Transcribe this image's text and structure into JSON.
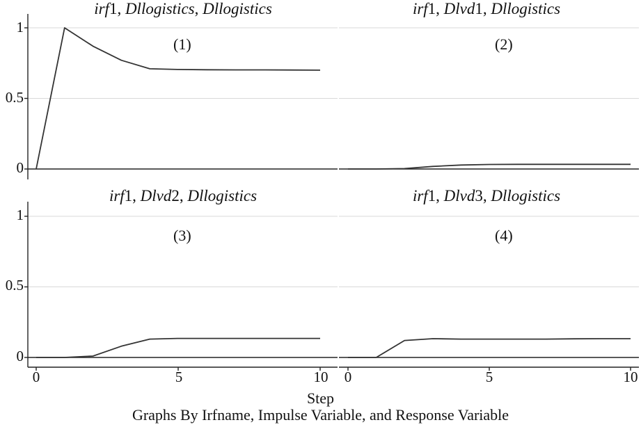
{
  "chart_data": {
    "type": "line",
    "xlabel": "Step",
    "note": "Graphs By Irfname, Impulse Variable, and Response Variable",
    "xlim": [
      0,
      10
    ],
    "ylim": [
      0,
      1
    ],
    "yticks": [
      "0",
      "0.5",
      "1"
    ],
    "xticks": [
      "0",
      "5",
      "10"
    ],
    "grid": true,
    "panels": [
      {
        "title": {
          "irf": "irf",
          "irf_num": "1",
          "sep1": ", ",
          "impulse": "Dllogistics",
          "sep2": ", ",
          "response": "Dllogistics"
        },
        "label": "(1)",
        "x": [
          0,
          1,
          2,
          3,
          4,
          5,
          6,
          7,
          8,
          9,
          10
        ],
        "y": [
          0,
          1.0,
          0.87,
          0.77,
          0.71,
          0.705,
          0.703,
          0.702,
          0.702,
          0.701,
          0.7
        ]
      },
      {
        "title": {
          "irf": "irf",
          "irf_num": "1",
          "sep1": ", ",
          "impulse": "Dlvd",
          "impulse_num": "1",
          "sep2": ", ",
          "response": "Dllogistics"
        },
        "label": "(2)",
        "x": [
          0,
          1,
          2,
          3,
          4,
          5,
          6,
          7,
          8,
          9,
          10
        ],
        "y": [
          0,
          0,
          0.003,
          0.018,
          0.028,
          0.032,
          0.033,
          0.033,
          0.033,
          0.033,
          0.033
        ]
      },
      {
        "title": {
          "irf": "irf",
          "irf_num": "1",
          "sep1": ", ",
          "impulse": "Dlvd",
          "impulse_num": "2",
          "sep2": ", ",
          "response": "Dllogistics"
        },
        "label": "(3)",
        "x": [
          0,
          1,
          2,
          3,
          4,
          5,
          6,
          7,
          8,
          9,
          10
        ],
        "y": [
          0,
          0,
          0.01,
          0.08,
          0.13,
          0.135,
          0.135,
          0.135,
          0.135,
          0.135,
          0.135
        ]
      },
      {
        "title": {
          "irf": "irf",
          "irf_num": "1",
          "sep1": ", ",
          "impulse": "Dlvd",
          "impulse_num": "3",
          "sep2": ", ",
          "response": "Dllogistics"
        },
        "label": "(4)",
        "x": [
          0,
          1,
          2,
          3,
          4,
          5,
          6,
          7,
          8,
          9,
          10
        ],
        "y": [
          0,
          0,
          0.12,
          0.133,
          0.13,
          0.13,
          0.13,
          0.13,
          0.132,
          0.133,
          0.133
        ]
      }
    ]
  }
}
